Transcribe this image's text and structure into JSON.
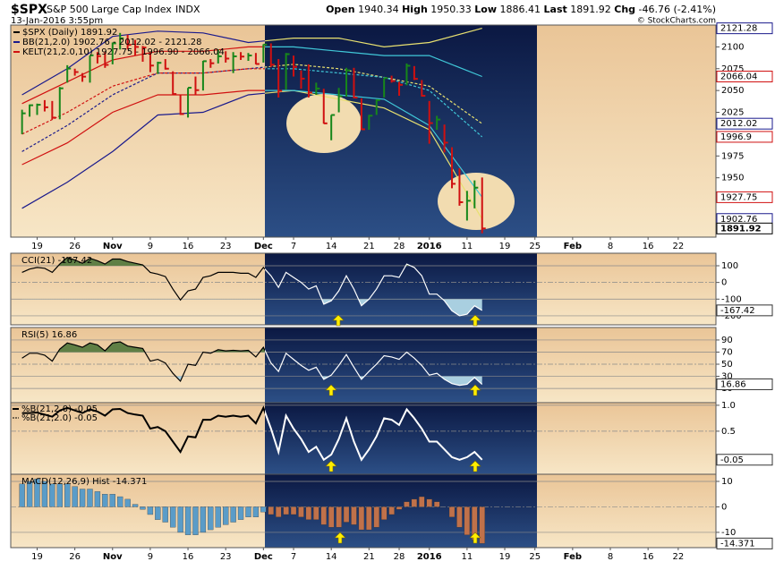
{
  "header": {
    "symbol": "$SPX",
    "name": "S&P 500 Large Cap Index",
    "exchange": "INDX",
    "timestamp": "13-Jan-2016 3:55pm",
    "quote": [
      {
        "label": "Open",
        "value": "1940.34"
      },
      {
        "label": "High",
        "value": "1950.33"
      },
      {
        "label": "Low",
        "value": "1886.41"
      },
      {
        "label": "Last",
        "value": "1891.92"
      },
      {
        "label": "Chg",
        "value": "-46.76 (-2.41%)"
      }
    ],
    "credit": "© StockCharts.com"
  },
  "chart_data": [
    {
      "type": "ohlc",
      "x": [
        0,
        1,
        2,
        3,
        4,
        5,
        6,
        7,
        8,
        9,
        10,
        11,
        12,
        13,
        14,
        15,
        16,
        17,
        18,
        19,
        20,
        21,
        22,
        23,
        24,
        25,
        26,
        27,
        28,
        29,
        30,
        31,
        32,
        33,
        34,
        35,
        36,
        37,
        38,
        39,
        40,
        41,
        42,
        43,
        44,
        45,
        46,
        47,
        48,
        49,
        50,
        51,
        52,
        53,
        54,
        55,
        56,
        57,
        58,
        59,
        60,
        61
      ],
      "high": [
        2028,
        2034,
        2035,
        2039,
        2038,
        2054,
        2079,
        2075,
        2070,
        2090,
        2094,
        2094,
        2105,
        2116,
        2114,
        2108,
        2101,
        2093,
        2083,
        2086,
        2072,
        2045,
        2053,
        2066,
        2084,
        2086,
        2097,
        2095,
        2094,
        2094,
        2093,
        2093,
        2103,
        2104,
        2086,
        2093,
        2090,
        2073,
        2080,
        2059,
        2052,
        2022,
        2053,
        2076,
        2076,
        2041,
        2022,
        2040,
        2064,
        2067,
        2060,
        2081,
        2078,
        2062,
        2038,
        2021,
        2011,
        1985,
        1961,
        1935,
        1947,
        1950.33
      ],
      "low": [
        2000,
        2020,
        2022,
        2026,
        2017,
        2017,
        2059,
        2067,
        2060,
        2059,
        2081,
        2076,
        2080,
        2097,
        2097,
        2090,
        2083,
        2071,
        2069,
        2074,
        2045,
        2022,
        2019,
        2045,
        2050,
        2076,
        2081,
        2082,
        2070,
        2085,
        2084,
        2080,
        2082,
        2077,
        2042,
        2051,
        2066,
        2052,
        2042,
        2045,
        2012,
        1993,
        2025,
        2043,
        2041,
        2005,
        2005,
        2022,
        2042,
        2059,
        2044,
        2056,
        2062,
        2043,
        1989,
        2005,
        1979,
        1938,
        1918,
        1901,
        1915,
        1886.41
      ],
      "close": [
        2023.86,
        2033.11,
        2033.66,
        2030.77,
        2018.94,
        2052.51,
        2075.15,
        2071.18,
        2065.89,
        2090.35,
        2089.41,
        2079.36,
        2104.05,
        2109.79,
        2102.31,
        2099.93,
        2099.2,
        2078.58,
        2081.72,
        2075,
        2045.97,
        2023.04,
        2053.19,
        2050.44,
        2083.58,
        2081.24,
        2089.17,
        2086.59,
        2089.14,
        2088.87,
        2090.11,
        2080.41,
        2102.63,
        2079.51,
        2049.62,
        2091.69,
        2077.07,
        2063.59,
        2047.62,
        2052.23,
        2012.37,
        2021.94,
        2043.41,
        2073.07,
        2041.89,
        2005.55,
        2021.15,
        2038.97,
        2064.29,
        2060.99,
        2056.5,
        2078.36,
        2063.36,
        2043.94,
        2012.66,
        2016.71,
        1990.26,
        1943.09,
        1922.03,
        1923.67,
        1938.68,
        1891.92
      ],
      "up_color": "#17871a",
      "down_color": "#d01010",
      "legend": [
        {
          "name": "$SPX (Daily) 1891.92",
          "color": "#000000"
        },
        {
          "name": "BB(21,2.0) 1902.76 - 2012.02 - 2121.28",
          "color": "#1a1a8c"
        },
        {
          "name": "KELT(21,2.0,10) 1927.75 - 1996.90 - 2066.04",
          "color": "#d01010"
        }
      ],
      "series": [
        {
          "x": [
            0,
            6,
            12,
            18,
            24,
            30,
            36,
            42,
            48,
            54,
            61
          ],
          "values": [
            2045,
            2075,
            2112,
            2118,
            2116,
            2105,
            2110,
            2110,
            2100,
            2105,
            2121.28
          ],
          "color": "#1a1a8c",
          "dark_color": "#e8e070",
          "dash": false
        },
        {
          "x": [
            0,
            6,
            12,
            18,
            24,
            30,
            36,
            42,
            48,
            54,
            61
          ],
          "values": [
            1980,
            2010,
            2045,
            2070,
            2070,
            2075,
            2080,
            2075,
            2065,
            2055,
            2012.02
          ],
          "color": "#1a1a8c",
          "dark_color": "#e8e070",
          "dash": true
        },
        {
          "x": [
            0,
            6,
            12,
            18,
            24,
            30,
            36,
            42,
            48,
            54,
            61
          ],
          "values": [
            1915,
            1945,
            1980,
            2022,
            2025,
            2045,
            2050,
            2040,
            2030,
            2005,
            1902.76
          ],
          "color": "#1a1a8c",
          "dark_color": "#e8e070",
          "dash": false
        },
        {
          "x": [
            0,
            6,
            12,
            18,
            24,
            30,
            36,
            42,
            48,
            54,
            61
          ],
          "values": [
            2035,
            2060,
            2085,
            2095,
            2095,
            2100,
            2100,
            2095,
            2090,
            2090,
            2066.04
          ],
          "color": "#d01010",
          "dark_color": "#40c8d8",
          "dash": false
        },
        {
          "x": [
            0,
            6,
            12,
            18,
            24,
            30,
            36,
            42,
            48,
            54,
            61
          ],
          "values": [
            2000,
            2025,
            2055,
            2070,
            2070,
            2075,
            2075,
            2070,
            2065,
            2050,
            1996.9
          ],
          "color": "#d01010",
          "dark_color": "#40c8d8",
          "dash": true
        },
        {
          "x": [
            0,
            6,
            12,
            18,
            24,
            30,
            36,
            42,
            48,
            54,
            61
          ],
          "values": [
            1965,
            1990,
            2025,
            2045,
            2045,
            2050,
            2050,
            2045,
            2040,
            2010,
            1927.75
          ],
          "color": "#d01010",
          "dark_color": "#40c8d8",
          "dash": false
        }
      ],
      "xlim": [
        -1.5,
        92
      ],
      "xticks": [
        {
          "value": 2,
          "label": "19"
        },
        {
          "value": 7,
          "label": "26"
        },
        {
          "value": 12,
          "label": "Nov"
        },
        {
          "value": 17,
          "label": "9"
        },
        {
          "value": 22,
          "label": "16"
        },
        {
          "value": 27,
          "label": "23"
        },
        {
          "value": 32,
          "label": "Dec"
        },
        {
          "value": 36,
          "label": "7"
        },
        {
          "value": 41,
          "label": "14"
        },
        {
          "value": 46,
          "label": "21"
        },
        {
          "value": 50,
          "label": "28"
        },
        {
          "value": 54,
          "label": "2016"
        },
        {
          "value": 59,
          "label": "11"
        },
        {
          "value": 64,
          "label": "19"
        },
        {
          "value": 68,
          "label": "25"
        },
        {
          "value": 73,
          "label": "Feb"
        },
        {
          "value": 78,
          "label": "8"
        },
        {
          "value": 83,
          "label": "16"
        },
        {
          "value": 87,
          "label": "22"
        }
      ],
      "ylim": [
        1882,
        2125
      ],
      "yticks": [
        1950,
        1975,
        2025,
        2050,
        2075,
        2100
      ],
      "grid": false
    },
    {
      "type": "line",
      "title": "CCI(21) -167.42",
      "x": [
        0,
        1,
        2,
        3,
        4,
        5,
        6,
        7,
        8,
        9,
        10,
        11,
        12,
        13,
        14,
        15,
        16,
        17,
        18,
        19,
        20,
        21,
        22,
        23,
        24,
        25,
        26,
        27,
        28,
        29,
        30,
        31,
        32,
        33,
        34,
        35,
        36,
        37,
        38,
        39,
        40,
        41,
        42,
        43,
        44,
        45,
        46,
        47,
        48,
        49,
        50,
        51,
        52,
        53,
        54,
        55,
        56,
        57,
        58,
        59,
        60,
        61
      ],
      "values": [
        60,
        80,
        90,
        85,
        60,
        110,
        150,
        135,
        115,
        145,
        130,
        110,
        140,
        140,
        125,
        115,
        105,
        60,
        50,
        35,
        -40,
        -105,
        -50,
        -40,
        30,
        40,
        60,
        60,
        60,
        55,
        55,
        30,
        90,
        40,
        -30,
        60,
        30,
        0,
        -40,
        -20,
        -130,
        -110,
        -50,
        40,
        -40,
        -140,
        -100,
        -40,
        40,
        40,
        30,
        110,
        90,
        40,
        -70,
        -70,
        -110,
        -170,
        -200,
        -190,
        -140,
        -167.42
      ],
      "color": "#000000",
      "dark_color": "#ffffff",
      "overbought": 100,
      "oversold": -100,
      "overbought_fill": "#5f7f45",
      "oversold_fill": "#a9cfe0",
      "xlim": [
        -1.5,
        92
      ],
      "ylim": [
        -254,
        175
      ],
      "yticks": [
        100,
        0,
        -100,
        -200
      ],
      "grid": true
    },
    {
      "type": "line",
      "title": "RSI(5) 16.86",
      "x": [
        0,
        1,
        2,
        3,
        4,
        5,
        6,
        7,
        8,
        9,
        10,
        11,
        12,
        13,
        14,
        15,
        16,
        17,
        18,
        19,
        20,
        21,
        22,
        23,
        24,
        25,
        26,
        27,
        28,
        29,
        30,
        31,
        32,
        33,
        34,
        35,
        36,
        37,
        38,
        39,
        40,
        41,
        42,
        43,
        44,
        45,
        46,
        47,
        48,
        49,
        50,
        51,
        52,
        53,
        54,
        55,
        56,
        57,
        58,
        59,
        60,
        61
      ],
      "values": [
        60,
        68,
        68,
        65,
        55,
        75,
        85,
        82,
        78,
        85,
        82,
        72,
        85,
        87,
        80,
        78,
        76,
        55,
        58,
        52,
        35,
        22,
        50,
        48,
        70,
        68,
        74,
        72,
        73,
        72,
        73,
        62,
        78,
        52,
        38,
        68,
        58,
        48,
        40,
        45,
        25,
        32,
        48,
        66,
        45,
        25,
        38,
        50,
        64,
        62,
        58,
        70,
        60,
        48,
        32,
        35,
        25,
        18,
        15,
        17,
        28,
        16.86
      ],
      "color": "#000000",
      "dark_color": "#ffffff",
      "overbought": 70,
      "oversold": 30,
      "overbought_fill": "#5f7f45",
      "oversold_fill": "#a9cfe0",
      "xlim": [
        -1.5,
        92
      ],
      "ylim": [
        -13.5,
        110.6
      ],
      "yticks": [
        90,
        70,
        50,
        30,
        10
      ],
      "grid": true
    },
    {
      "type": "line",
      "legend": [
        {
          "name": "%B(21,2.0) -0.05"
        },
        {
          "name": "%B(21,2.0) -0.05"
        }
      ],
      "x": [
        0,
        1,
        2,
        3,
        4,
        5,
        6,
        7,
        8,
        9,
        10,
        11,
        12,
        13,
        14,
        15,
        16,
        17,
        18,
        19,
        20,
        21,
        22,
        23,
        24,
        25,
        26,
        27,
        28,
        29,
        30,
        31,
        32,
        33,
        34,
        35,
        36,
        37,
        38,
        39,
        40,
        41,
        42,
        43,
        44,
        45,
        46,
        47,
        48,
        49,
        50,
        51,
        52,
        53,
        54,
        55,
        56,
        57,
        58,
        59,
        60,
        61
      ],
      "values": [
        0.85,
        0.85,
        0.86,
        0.82,
        0.78,
        0.9,
        0.95,
        0.9,
        0.85,
        0.92,
        0.88,
        0.8,
        0.92,
        0.93,
        0.85,
        0.82,
        0.8,
        0.55,
        0.58,
        0.5,
        0.3,
        0.1,
        0.4,
        0.38,
        0.72,
        0.72,
        0.8,
        0.78,
        0.8,
        0.78,
        0.8,
        0.65,
        0.95,
        0.55,
        0.1,
        0.8,
        0.55,
        0.35,
        0.1,
        0.2,
        -0.05,
        0.05,
        0.35,
        0.75,
        0.3,
        -0.05,
        0.15,
        0.4,
        0.75,
        0.72,
        0.62,
        0.92,
        0.75,
        0.55,
        0.3,
        0.3,
        0.15,
        0,
        -0.05,
        0,
        0.1,
        -0.05
      ],
      "color": "#000000",
      "dark_color": "#ffffff",
      "xlim": [
        -1.5,
        92
      ],
      "ylim": [
        -0.33,
        1.05
      ],
      "yticks": [
        {
          "value": 1,
          "label": "1.0"
        },
        0.5
      ],
      "grid": true
    },
    {
      "type": "bar",
      "title": "MACD(12,26,9) Hist -14.371",
      "x": [
        0,
        1,
        2,
        3,
        4,
        5,
        6,
        7,
        8,
        9,
        10,
        11,
        12,
        13,
        14,
        15,
        16,
        17,
        18,
        19,
        20,
        21,
        22,
        23,
        24,
        25,
        26,
        27,
        28,
        29,
        30,
        31,
        32,
        33,
        34,
        35,
        36,
        37,
        38,
        39,
        40,
        41,
        42,
        43,
        44,
        45,
        46,
        47,
        48,
        49,
        50,
        51,
        52,
        53,
        54,
        55,
        56,
        57,
        58,
        59,
        60,
        61
      ],
      "values": [
        9,
        10,
        11,
        10,
        9,
        9,
        9,
        8,
        7,
        7,
        6,
        5,
        5,
        4,
        3,
        1,
        -1,
        -3,
        -5,
        -6,
        -8,
        -10,
        -11,
        -11,
        -10,
        -9,
        -8,
        -7,
        -6,
        -5,
        -4,
        -4,
        -2,
        -3,
        -4,
        -3,
        -3,
        -4,
        -5,
        -5,
        -7,
        -8,
        -8,
        -6,
        -7,
        -9,
        -9,
        -8,
        -5,
        -3,
        -1,
        2,
        3,
        4,
        3,
        2,
        0,
        -4,
        -8,
        -11,
        -13,
        -14.371
      ],
      "color": "#5a9cc8",
      "dark_color": "#c0714a",
      "xlim": [
        -1.5,
        92
      ],
      "xticks": [
        {
          "value": 2,
          "label": "19"
        },
        {
          "value": 7,
          "label": "26"
        },
        {
          "value": 12,
          "label": "Nov"
        },
        {
          "value": 17,
          "label": "9"
        },
        {
          "value": 22,
          "label": "16"
        },
        {
          "value": 27,
          "label": "23"
        },
        {
          "value": 32,
          "label": "Dec"
        },
        {
          "value": 36,
          "label": "7"
        },
        {
          "value": 41,
          "label": "14"
        },
        {
          "value": 46,
          "label": "21"
        },
        {
          "value": 50,
          "label": "28"
        },
        {
          "value": 54,
          "label": "2016"
        },
        {
          "value": 59,
          "label": "11"
        },
        {
          "value": 64,
          "label": "19"
        },
        {
          "value": 68,
          "label": "25"
        },
        {
          "value": 73,
          "label": "Feb"
        },
        {
          "value": 78,
          "label": "8"
        },
        {
          "value": 83,
          "label": "16"
        },
        {
          "value": 87,
          "label": "22"
        }
      ],
      "ylim": [
        -16,
        12.8
      ],
      "yticks": [
        10,
        0,
        -10
      ],
      "grid": true
    }
  ]
}
